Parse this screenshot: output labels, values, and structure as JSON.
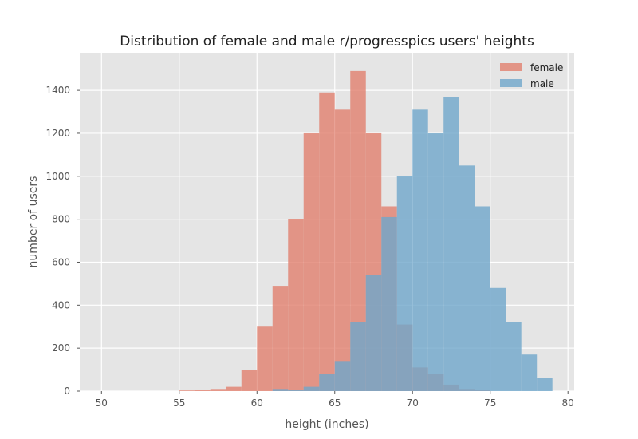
{
  "chart_data": {
    "type": "histogram",
    "title": "Distribution of female and male r/progresspics users' heights",
    "xlabel": "height (inches)",
    "ylabel": "number of users",
    "xlim": [
      48.6,
      80.4
    ],
    "ylim": [
      0,
      1575
    ],
    "xticks": [
      50,
      55,
      60,
      65,
      70,
      75,
      80
    ],
    "yticks": [
      0,
      200,
      400,
      600,
      800,
      1000,
      1200,
      1400
    ],
    "grid": true,
    "legend_position": "top-right",
    "bin_edges": [
      50,
      51,
      52,
      53,
      54,
      55,
      56,
      57,
      58,
      59,
      60,
      61,
      62,
      63,
      64,
      65,
      66,
      67,
      68,
      69,
      70,
      71,
      72,
      73,
      74,
      75,
      76,
      77,
      78,
      79
    ],
    "series": [
      {
        "name": "female",
        "color": "#e17f6e",
        "opacity": 0.8,
        "values": [
          0,
          0,
          0,
          0,
          0,
          3,
          5,
          10,
          20,
          100,
          300,
          490,
          800,
          1200,
          1390,
          1310,
          1490,
          1200,
          860,
          310,
          110,
          80,
          30,
          10,
          5,
          0,
          0,
          0,
          0
        ]
      },
      {
        "name": "male",
        "color": "#6fa6cb",
        "opacity": 0.8,
        "values": [
          0,
          0,
          0,
          0,
          0,
          0,
          0,
          0,
          0,
          0,
          0,
          10,
          5,
          20,
          80,
          140,
          320,
          540,
          810,
          1000,
          1310,
          1200,
          1370,
          1050,
          860,
          480,
          320,
          170,
          60
        ]
      }
    ]
  }
}
